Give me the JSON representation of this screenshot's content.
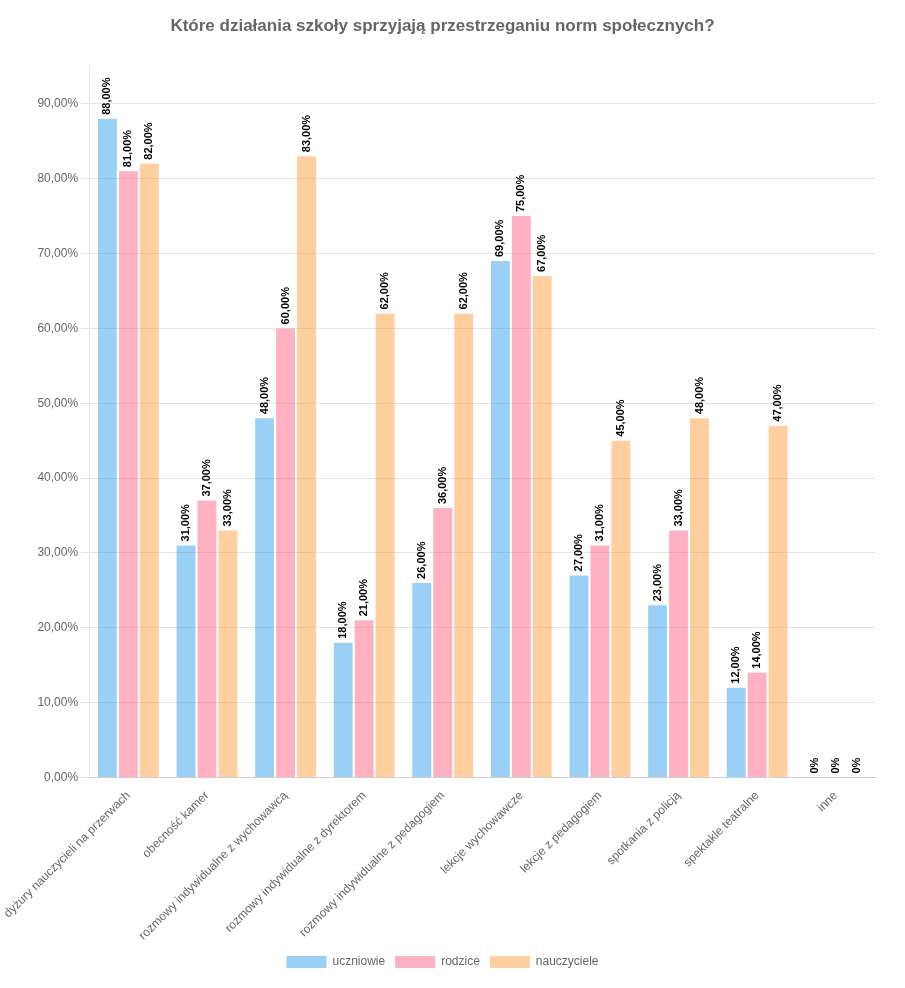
{
  "chart_data": {
    "type": "bar",
    "title": "Które działania szkoły sprzyjają przestrzeganiu norm społecznych?",
    "categories": [
      "dyżury nauczycieli na przerwach",
      "obecność kamer",
      "rozmowy indywidualne z wychowawcą",
      "rozmowy indywidualne z dyrektorem",
      "rozmowy indywidualne z pedagogiem",
      "lekcje wychowawcze",
      "lekcje z pedagogiem",
      "spotkania z policją",
      "spektakle teatralne",
      "inne"
    ],
    "series": [
      {
        "name": "uczniowie",
        "values": [
          88,
          31,
          48,
          18,
          26,
          69,
          27,
          23,
          12,
          0
        ],
        "value_labels": [
          "88,00%",
          "31,00%",
          "48,00%",
          "18,00%",
          "26,00%",
          "69,00%",
          "27,00%",
          "23,00%",
          "12,00%",
          "0%"
        ]
      },
      {
        "name": "rodzice",
        "values": [
          81,
          37,
          60,
          21,
          36,
          75,
          31,
          33,
          14,
          0
        ],
        "value_labels": [
          "81,00%",
          "37,00%",
          "60,00%",
          "21,00%",
          "36,00%",
          "75,00%",
          "31,00%",
          "33,00%",
          "14,00%",
          "0%"
        ]
      },
      {
        "name": "nauczyciele",
        "values": [
          82,
          33,
          83,
          62,
          62,
          67,
          45,
          48,
          47,
          0
        ],
        "value_labels": [
          "82,00%",
          "33,00%",
          "83,00%",
          "62,00%",
          "62,00%",
          "67,00%",
          "45,00%",
          "48,00%",
          "47,00%",
          "0%"
        ]
      }
    ],
    "ylim": [
      0,
      95
    ],
    "yticks": [
      {
        "value": 0,
        "label": "0,00%"
      },
      {
        "value": 10,
        "label": "10,00%"
      },
      {
        "value": 20,
        "label": "20,00%"
      },
      {
        "value": 30,
        "label": "30,00%"
      },
      {
        "value": 40,
        "label": "40,00%"
      },
      {
        "value": 50,
        "label": "50,00%"
      },
      {
        "value": 60,
        "label": "60,00%"
      },
      {
        "value": 70,
        "label": "70,00%"
      },
      {
        "value": 80,
        "label": "80,00%"
      },
      {
        "value": 90,
        "label": "90,00%"
      }
    ],
    "grid": true,
    "legend": "bottom",
    "data_labels": true
  }
}
